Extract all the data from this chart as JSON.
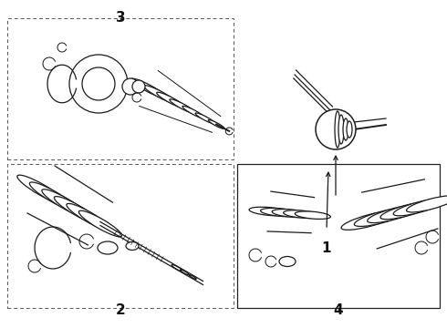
{
  "background_color": "#ffffff",
  "fig_width": 4.9,
  "fig_height": 3.6,
  "dpi": 100,
  "line_color": "#1a1a1a",
  "text_color": "#111111",
  "font_size": 10
}
